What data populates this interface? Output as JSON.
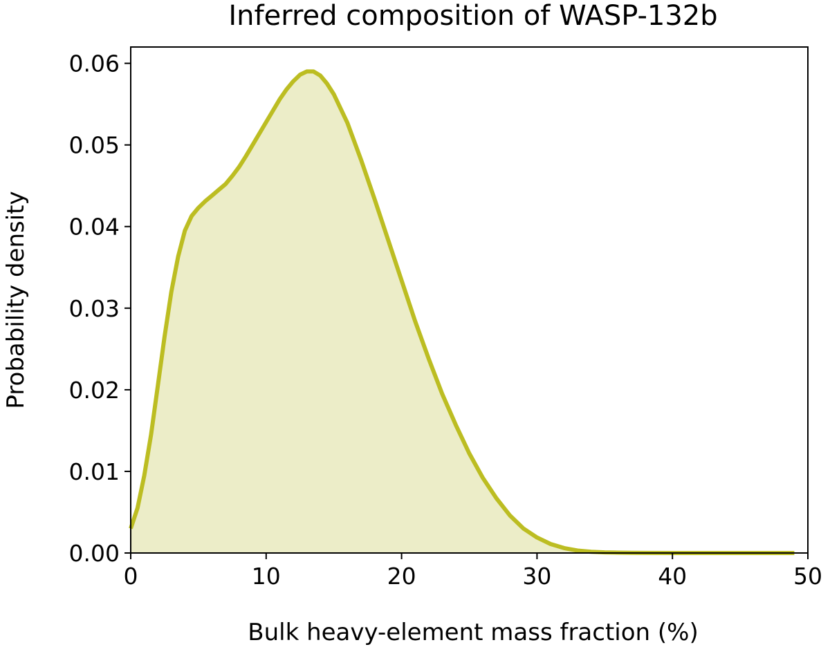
{
  "chart_data": {
    "type": "area",
    "title": "Inferred composition of WASP-132b",
    "xlabel": "Bulk heavy-element mass fraction (%)",
    "ylabel": "Probability density",
    "xlim": [
      0,
      50
    ],
    "ylim": [
      0,
      0.062
    ],
    "xticks": [
      0,
      10,
      20,
      30,
      40,
      50
    ],
    "xtick_labels": [
      "0",
      "10",
      "20",
      "30",
      "40",
      "50"
    ],
    "yticks": [
      0,
      0.01,
      0.02,
      0.03,
      0.04,
      0.05,
      0.06
    ],
    "ytick_labels": [
      "0.00",
      "0.01",
      "0.02",
      "0.03",
      "0.04",
      "0.05",
      "0.06"
    ],
    "grid": false,
    "legend": "none",
    "series": [
      {
        "color": "#bcbd22",
        "fill_color": "#ecedc8",
        "x": [
          0,
          0.5,
          1,
          1.5,
          2,
          2.5,
          3,
          3.5,
          4,
          4.5,
          5,
          5.5,
          6,
          6.5,
          7,
          7.5,
          8,
          8.5,
          9,
          9.5,
          10,
          10.5,
          11,
          11.5,
          12,
          12.5,
          13,
          13.5,
          14,
          14.5,
          15,
          16,
          17,
          18,
          19,
          20,
          21,
          22,
          23,
          24,
          25,
          26,
          27,
          28,
          29,
          30,
          31,
          32,
          33,
          34,
          35,
          36,
          37,
          38,
          40,
          42,
          45,
          49
        ],
        "y": [
          0.003,
          0.0055,
          0.0095,
          0.0145,
          0.0205,
          0.0265,
          0.032,
          0.0363,
          0.0395,
          0.0413,
          0.0423,
          0.0431,
          0.0438,
          0.0445,
          0.0452,
          0.0462,
          0.0473,
          0.0486,
          0.05,
          0.0514,
          0.0528,
          0.0542,
          0.0556,
          0.0568,
          0.0578,
          0.0586,
          0.059,
          0.059,
          0.0585,
          0.0575,
          0.0562,
          0.0527,
          0.0482,
          0.0434,
          0.0384,
          0.0334,
          0.0284,
          0.0238,
          0.0195,
          0.0157,
          0.0122,
          0.0092,
          0.0067,
          0.0046,
          0.003,
          0.0019,
          0.0011,
          0.0006,
          0.0003,
          0.00015,
          8e-05,
          4e-05,
          2e-05,
          1e-05,
          0,
          0,
          0,
          0
        ]
      }
    ]
  }
}
